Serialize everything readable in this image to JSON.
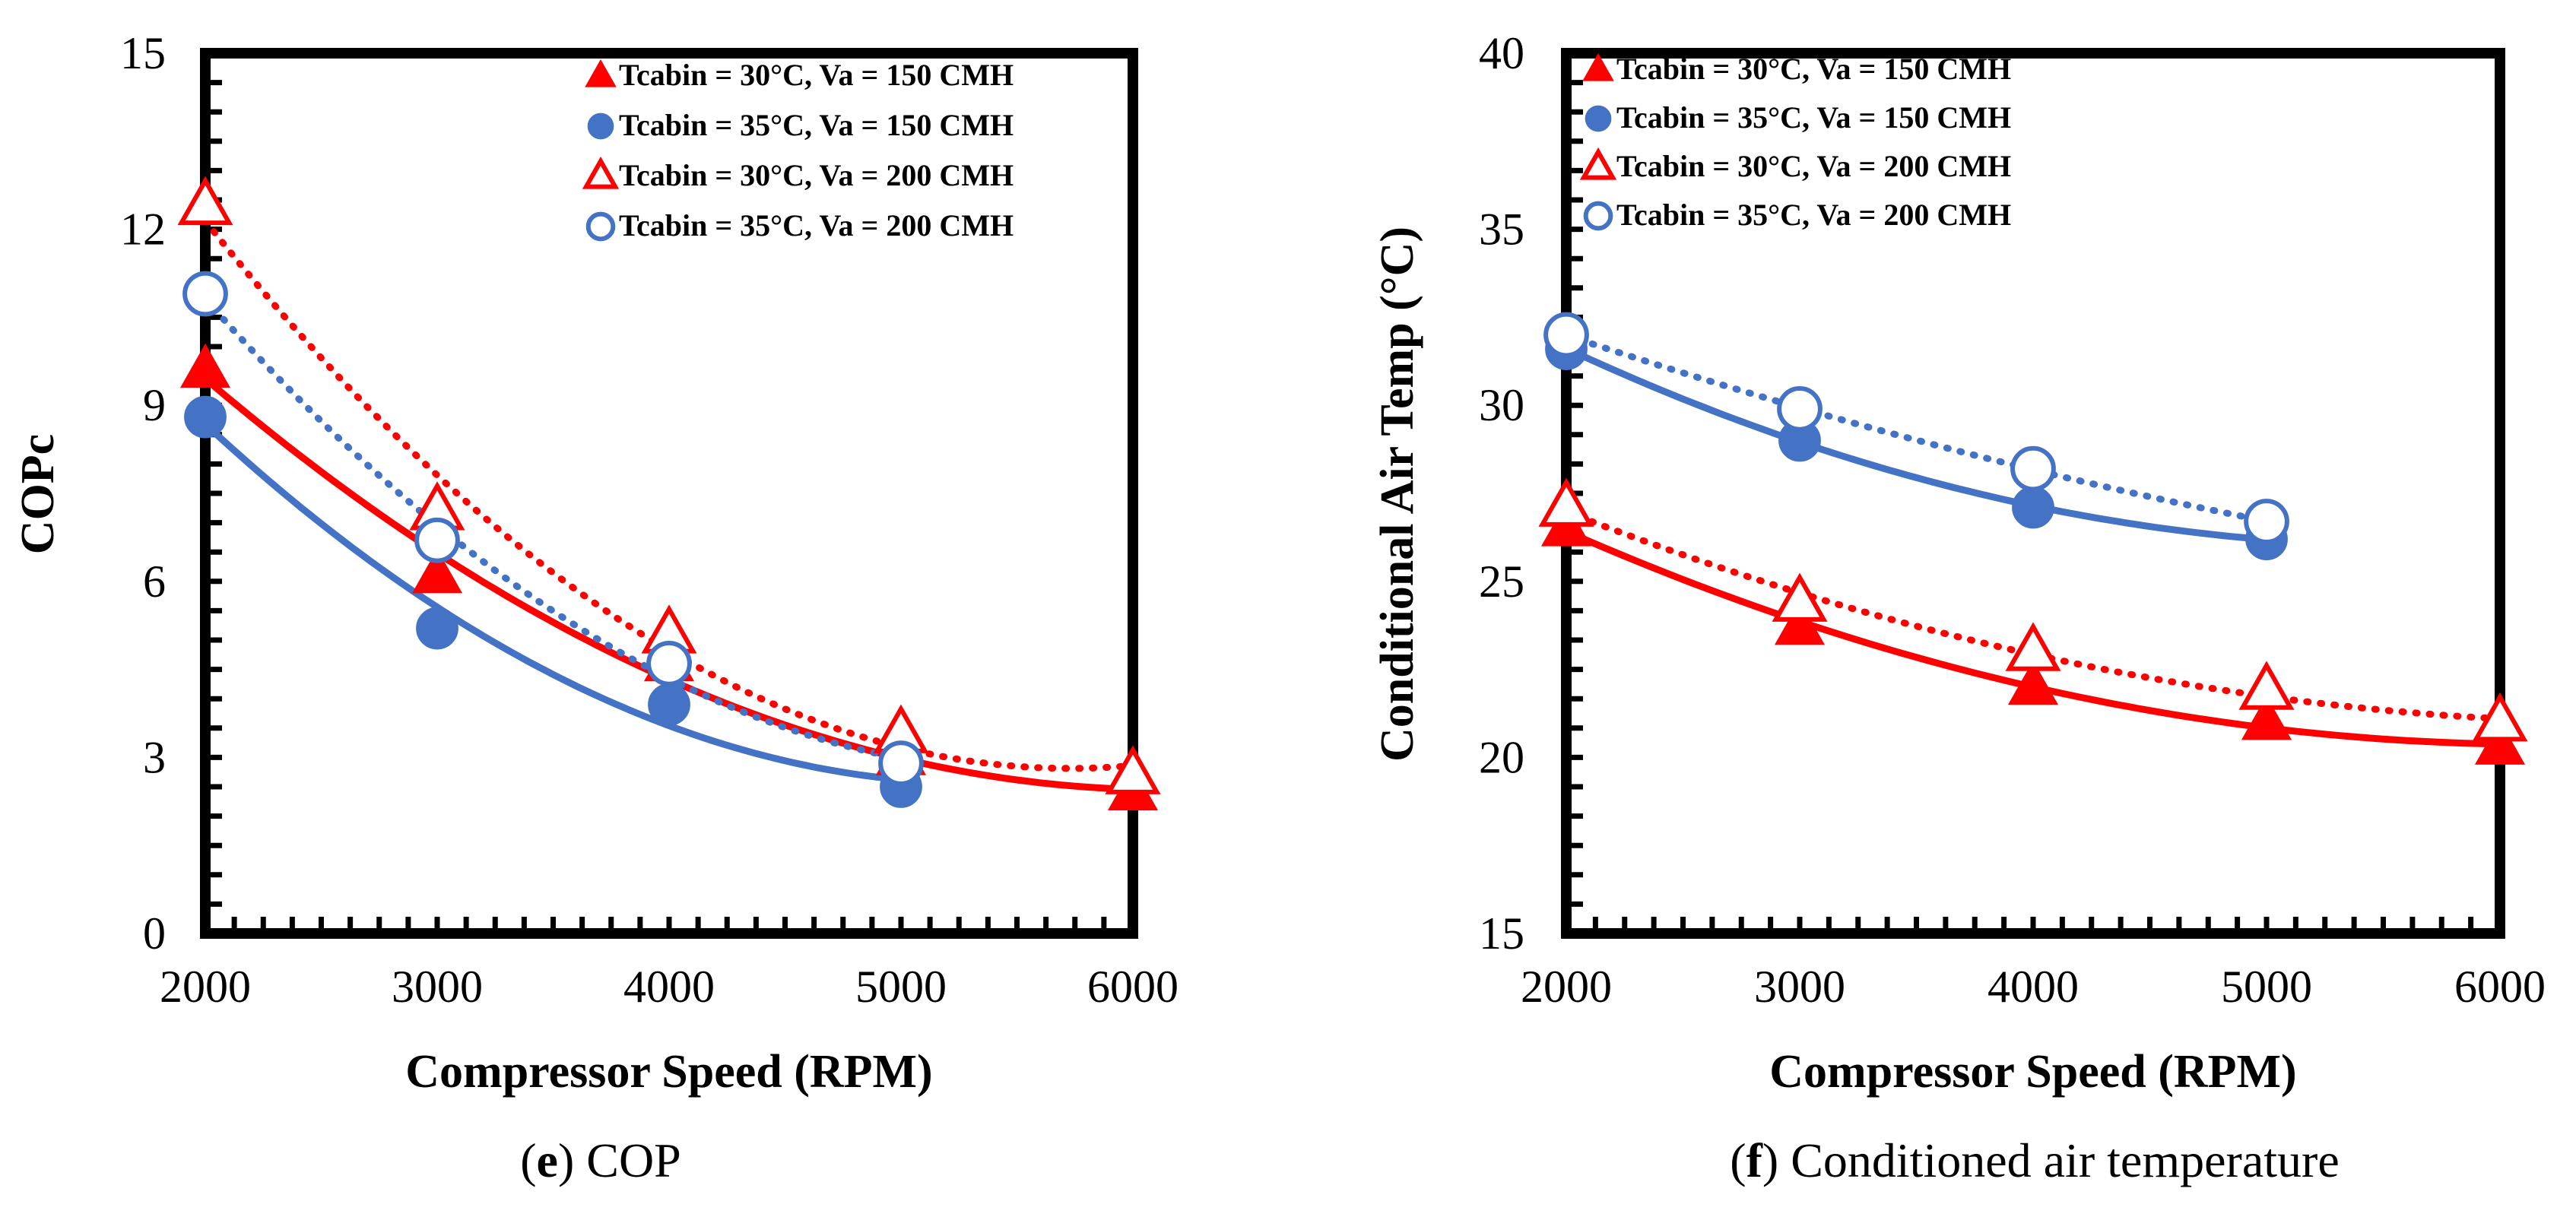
{
  "chart_data": [
    {
      "type": "scatter",
      "caption_letter": "e",
      "caption_text": "COP",
      "xlabel": "Compressor Speed (RPM)",
      "ylabel": "COPc",
      "xlim": [
        2000,
        6000
      ],
      "ylim": [
        0,
        15
      ],
      "xticks": [
        2000,
        3000,
        4000,
        5000,
        6000
      ],
      "yticks": [
        0,
        3,
        6,
        9,
        12,
        15
      ],
      "grid": false,
      "legend_position": "top-right",
      "series": [
        {
          "name": "Tcabin = 30°C, Va = 150 CMH",
          "marker": "filled-triangle",
          "color": "#ff0000",
          "line": "solid",
          "x": [
            2000,
            3000,
            4000,
            5000,
            6000
          ],
          "y": [
            9.6,
            6.1,
            4.6,
            3.0,
            2.4
          ]
        },
        {
          "name": "Tcabin = 35°C, Va = 150 CMH",
          "marker": "filled-circle",
          "color": "#4472c4",
          "line": "solid",
          "x": [
            2000,
            3000,
            4000,
            5000
          ],
          "y": [
            8.8,
            5.2,
            3.9,
            2.5
          ]
        },
        {
          "name": "Tcabin = 30°C, Va = 200 CMH",
          "marker": "open-triangle",
          "color": "#ff0000",
          "line": "dotted",
          "x": [
            2000,
            3000,
            4000,
            5000,
            6000
          ],
          "y": [
            12.4,
            7.2,
            5.1,
            3.4,
            2.7
          ]
        },
        {
          "name": "Tcabin = 35°C, Va = 200 CMH",
          "marker": "open-circle",
          "color": "#4472c4",
          "line": "dotted",
          "x": [
            2000,
            3000,
            4000,
            5000
          ],
          "y": [
            10.9,
            6.7,
            4.6,
            2.9
          ]
        }
      ]
    },
    {
      "type": "scatter",
      "caption_letter": "f",
      "caption_text": "Conditioned air temperature",
      "xlabel": "Compressor Speed (RPM)",
      "ylabel": "Conditional Air Temp (°C)",
      "xlim": [
        2000,
        6000
      ],
      "ylim": [
        15,
        40
      ],
      "xticks": [
        2000,
        3000,
        4000,
        5000,
        6000
      ],
      "yticks": [
        15,
        20,
        25,
        30,
        35,
        40
      ],
      "grid": false,
      "legend_position": "top-left",
      "series": [
        {
          "name": "Tcabin = 30°C, Va = 150 CMH",
          "marker": "filled-triangle",
          "color": "#ff0000",
          "line": "solid",
          "x": [
            2000,
            3000,
            4000,
            5000,
            6000
          ],
          "y": [
            26.5,
            23.7,
            22.0,
            21.0,
            20.3
          ]
        },
        {
          "name": "Tcabin = 35°C, Va = 150 CMH",
          "marker": "filled-circle",
          "color": "#4472c4",
          "line": "solid",
          "x": [
            2000,
            3000,
            4000,
            5000
          ],
          "y": [
            31.6,
            29.0,
            27.1,
            26.2
          ]
        },
        {
          "name": "Tcabin = 30°C, Va = 200 CMH",
          "marker": "open-triangle",
          "color": "#ff0000",
          "line": "dotted",
          "x": [
            2000,
            3000,
            4000,
            5000,
            6000
          ],
          "y": [
            27.1,
            24.4,
            23.0,
            21.9,
            21.0
          ]
        },
        {
          "name": "Tcabin = 35°C, Va = 200 CMH",
          "marker": "open-circle",
          "color": "#4472c4",
          "line": "dotted",
          "x": [
            2000,
            3000,
            4000,
            5000
          ],
          "y": [
            32.0,
            29.9,
            28.2,
            26.7
          ]
        }
      ]
    }
  ]
}
